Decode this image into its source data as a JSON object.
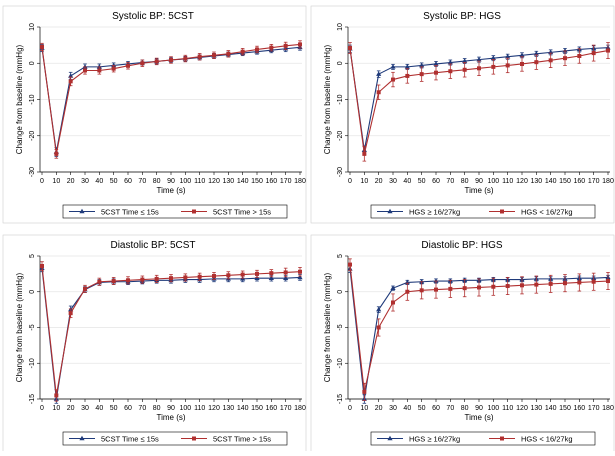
{
  "colors": {
    "series1": "#1f3a7a",
    "series2": "#b03030",
    "grid": "#e5e5e5",
    "axis": "#000000"
  },
  "chart_data": [
    {
      "type": "line",
      "title": "Systolic BP: 5CST",
      "xlabel": "Time (s)",
      "ylabel": "Change from baseline (mmHg)",
      "x": [
        0,
        10,
        20,
        30,
        40,
        50,
        60,
        70,
        80,
        90,
        100,
        110,
        120,
        130,
        140,
        150,
        160,
        170,
        180
      ],
      "xlim": [
        0,
        180
      ],
      "ylim": [
        -30,
        10
      ],
      "yticks": [
        -30,
        -20,
        -10,
        0,
        10
      ],
      "grid": true,
      "legend_position": "bottom",
      "series": [
        {
          "name": "5CST Time ≤ 15s",
          "values": [
            4.2,
            -24.5,
            -3.5,
            -1.0,
            -1.0,
            -0.6,
            -0.2,
            0.2,
            0.5,
            0.9,
            1.2,
            1.6,
            2.0,
            2.4,
            2.8,
            3.2,
            3.6,
            4.0,
            4.4
          ],
          "err": [
            1.0,
            1.2,
            1.0,
            0.8,
            0.8,
            0.7,
            0.7,
            0.7,
            0.7,
            0.7,
            0.7,
            0.7,
            0.7,
            0.7,
            0.7,
            0.7,
            0.7,
            0.8,
            0.8
          ]
        },
        {
          "name": "5CST Time > 15s",
          "values": [
            4.5,
            -25.0,
            -5.0,
            -2.0,
            -2.0,
            -1.5,
            -0.7,
            0.0,
            0.5,
            0.9,
            1.3,
            1.8,
            2.2,
            2.6,
            3.2,
            3.8,
            4.3,
            4.8,
            5.2
          ],
          "err": [
            1.0,
            1.2,
            1.2,
            1.0,
            1.0,
            0.9,
            0.9,
            0.9,
            0.9,
            0.9,
            0.9,
            0.9,
            0.9,
            0.9,
            0.9,
            0.9,
            0.9,
            1.0,
            1.0
          ]
        }
      ]
    },
    {
      "type": "line",
      "title": "Systolic BP: HGS",
      "xlabel": "Time (s)",
      "ylabel": "Change from baseline (mmHg)",
      "x": [
        0,
        10,
        20,
        30,
        40,
        50,
        60,
        70,
        80,
        90,
        100,
        110,
        120,
        130,
        140,
        150,
        160,
        170,
        180
      ],
      "xlim": [
        0,
        180
      ],
      "ylim": [
        -30,
        10
      ],
      "yticks": [
        -30,
        -20,
        -10,
        0,
        10
      ],
      "grid": true,
      "legend_position": "bottom",
      "series": [
        {
          "name": "HGS ≥ 16/27kg",
          "values": [
            4.0,
            -24.0,
            -3.0,
            -1.0,
            -1.0,
            -0.6,
            -0.2,
            0.2,
            0.6,
            1.0,
            1.4,
            1.8,
            2.2,
            2.6,
            3.0,
            3.4,
            3.8,
            4.1,
            4.3
          ],
          "err": [
            1.0,
            1.2,
            0.9,
            0.7,
            0.7,
            0.7,
            0.7,
            0.7,
            0.7,
            0.7,
            0.7,
            0.7,
            0.7,
            0.7,
            0.7,
            0.7,
            0.7,
            0.7,
            0.7
          ]
        },
        {
          "name": "HGS < 16/27kg",
          "values": [
            4.2,
            -25.0,
            -8.0,
            -4.5,
            -3.5,
            -3.0,
            -2.6,
            -2.2,
            -1.8,
            -1.4,
            -1.0,
            -0.6,
            -0.2,
            0.3,
            0.8,
            1.4,
            2.0,
            2.8,
            3.5
          ],
          "err": [
            1.5,
            2.0,
            2.0,
            2.0,
            2.0,
            2.0,
            2.0,
            2.0,
            2.0,
            2.0,
            2.0,
            2.0,
            2.0,
            2.0,
            2.0,
            2.0,
            2.0,
            2.2,
            2.2
          ]
        }
      ]
    },
    {
      "type": "line",
      "title": "Diastolic BP: 5CST",
      "xlabel": "Time (s)",
      "ylabel": "Change from baseline (mmHg)",
      "x": [
        0,
        10,
        20,
        30,
        40,
        50,
        60,
        70,
        80,
        90,
        100,
        110,
        120,
        130,
        140,
        150,
        160,
        170,
        180
      ],
      "xlim": [
        0,
        180
      ],
      "ylim": [
        -15,
        5
      ],
      "yticks": [
        -15,
        -10,
        -5,
        0,
        5
      ],
      "grid": true,
      "legend_position": "bottom",
      "series": [
        {
          "name": "5CST Time ≤ 15s",
          "values": [
            3.3,
            -15.0,
            -2.5,
            0.3,
            1.3,
            1.4,
            1.4,
            1.5,
            1.6,
            1.6,
            1.7,
            1.7,
            1.8,
            1.8,
            1.8,
            1.9,
            1.9,
            1.9,
            2.0
          ],
          "err": [
            0.5,
            0.6,
            0.5,
            0.4,
            0.4,
            0.4,
            0.4,
            0.4,
            0.4,
            0.4,
            0.4,
            0.4,
            0.4,
            0.4,
            0.4,
            0.4,
            0.4,
            0.4,
            0.4
          ]
        },
        {
          "name": "5CST Time > 15s",
          "values": [
            3.6,
            -14.5,
            -3.0,
            0.4,
            1.4,
            1.5,
            1.6,
            1.7,
            1.8,
            1.9,
            2.0,
            2.1,
            2.2,
            2.3,
            2.4,
            2.5,
            2.6,
            2.7,
            2.8
          ],
          "err": [
            0.6,
            0.8,
            0.6,
            0.5,
            0.5,
            0.5,
            0.5,
            0.5,
            0.5,
            0.5,
            0.5,
            0.5,
            0.5,
            0.5,
            0.5,
            0.5,
            0.5,
            0.6,
            0.6
          ]
        }
      ]
    },
    {
      "type": "line",
      "title": "Diastolic BP: HGS",
      "xlabel": "Time (s)",
      "ylabel": "Change from baseline (mmHg)",
      "x": [
        0,
        10,
        20,
        30,
        40,
        50,
        60,
        70,
        80,
        90,
        100,
        110,
        120,
        130,
        140,
        150,
        160,
        170,
        180
      ],
      "xlim": [
        0,
        180
      ],
      "ylim": [
        -15,
        5
      ],
      "yticks": [
        -15,
        -10,
        -5,
        0,
        5
      ],
      "grid": true,
      "legend_position": "bottom",
      "series": [
        {
          "name": "HGS ≥ 16/27kg",
          "values": [
            3.2,
            -15.0,
            -2.5,
            0.5,
            1.3,
            1.4,
            1.5,
            1.5,
            1.6,
            1.6,
            1.7,
            1.7,
            1.7,
            1.8,
            1.8,
            1.8,
            1.9,
            1.9,
            2.0
          ],
          "err": [
            0.5,
            0.6,
            0.4,
            0.3,
            0.3,
            0.3,
            0.3,
            0.3,
            0.3,
            0.3,
            0.3,
            0.3,
            0.3,
            0.3,
            0.3,
            0.3,
            0.3,
            0.3,
            0.3
          ]
        },
        {
          "name": "HGS < 16/27kg",
          "values": [
            3.8,
            -14.0,
            -5.0,
            -1.5,
            0.0,
            0.2,
            0.3,
            0.4,
            0.5,
            0.6,
            0.7,
            0.8,
            0.9,
            1.0,
            1.1,
            1.2,
            1.3,
            1.4,
            1.5
          ],
          "err": [
            0.8,
            1.2,
            1.2,
            1.2,
            1.2,
            1.2,
            1.2,
            1.2,
            1.2,
            1.2,
            1.2,
            1.2,
            1.2,
            1.2,
            1.2,
            1.2,
            1.2,
            1.2,
            1.2
          ]
        }
      ]
    }
  ]
}
